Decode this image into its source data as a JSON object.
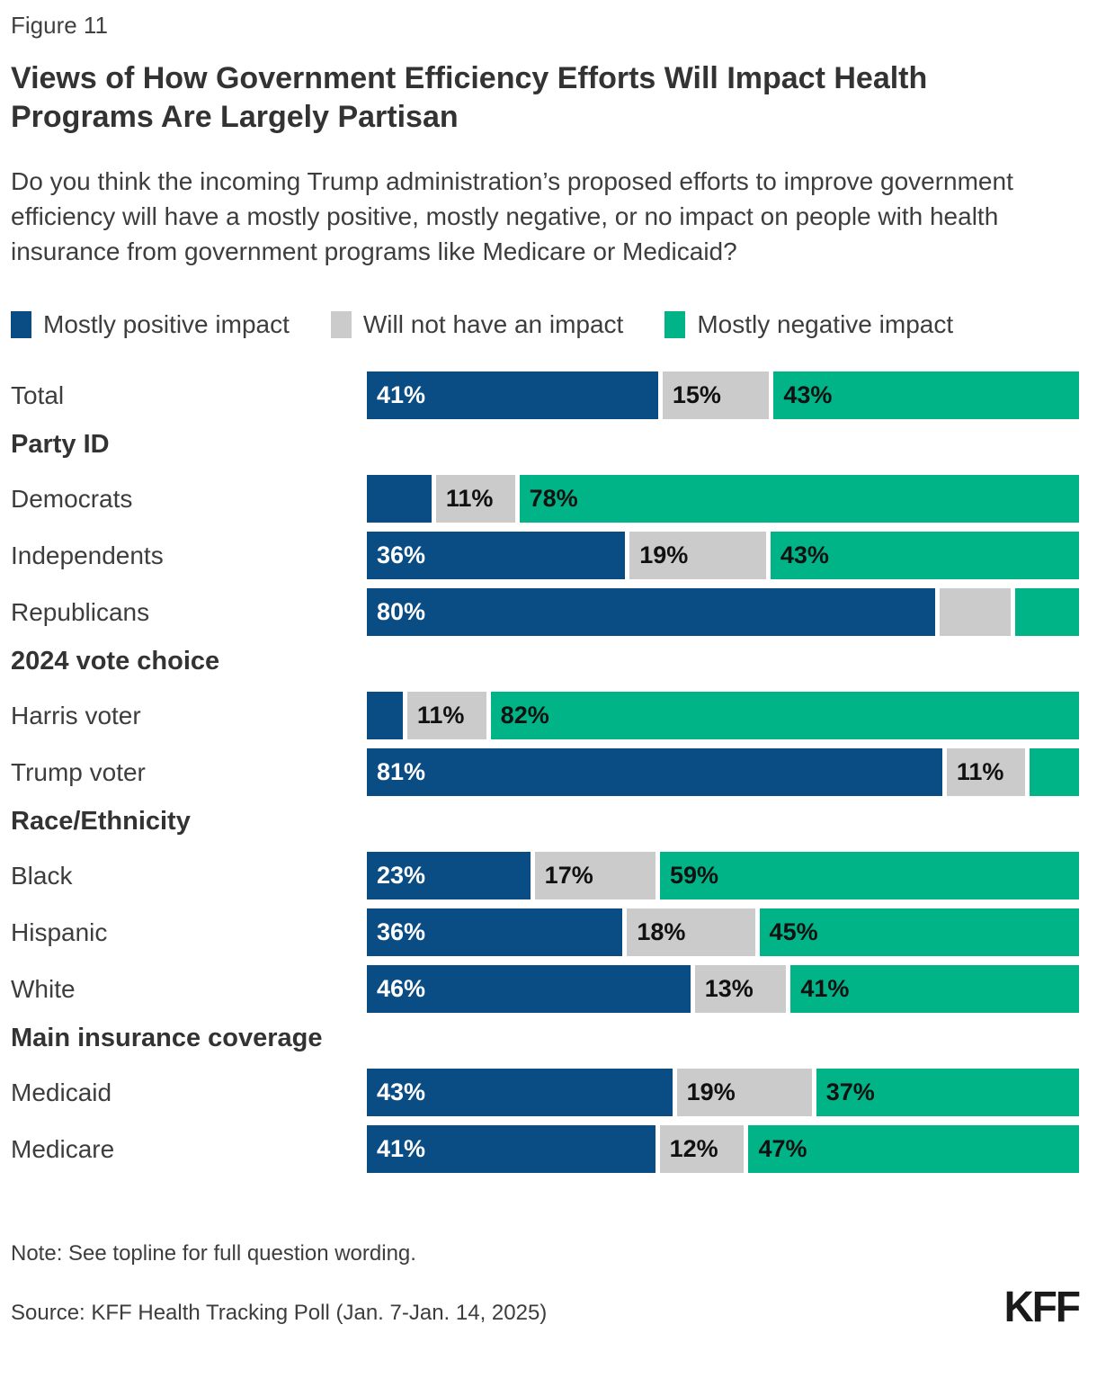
{
  "figure_label": "Figure 11",
  "title": "Views of How Government Efficiency Efforts Will Impact Health Programs Are Largely Partisan",
  "question": "Do you think the incoming Trump administration’s proposed efforts to improve government efficiency will have a mostly positive, mostly negative, or no impact on people with health insurance from government programs like Medicare or Medicaid?",
  "note": "Note: See topline for full question wording.",
  "source": "Source: KFF Health Tracking Poll (Jan. 7-Jan. 14, 2025)",
  "logo_text": "KFF",
  "colors": {
    "positive_blue": "#0a4d85",
    "no_impact_gray": "#cbcbcb",
    "negative_green": "#00b487",
    "text_dark": "#333333",
    "bar_label_on_blue": "#ffffff",
    "bar_label_on_light": "#111111"
  },
  "chart_data": {
    "type": "bar",
    "subtype": "horizontal-stacked",
    "legend_position": "top",
    "xlim": [
      0,
      100
    ],
    "grid": false,
    "series": [
      {
        "name": "Mostly positive impact",
        "color": "#0a4d85"
      },
      {
        "name": "Will not have an impact",
        "color": "#cbcbcb"
      },
      {
        "name": "Mostly negative impact",
        "color": "#00b487"
      }
    ],
    "rows": [
      {
        "type": "bar",
        "label": "Total",
        "values": [
          41,
          15,
          43
        ],
        "value_labels": [
          "41%",
          "15%",
          "43%"
        ]
      },
      {
        "type": "header",
        "label": "Party ID"
      },
      {
        "type": "bar",
        "label": "Democrats",
        "values": [
          9,
          11,
          78
        ],
        "value_labels": [
          "",
          "11%",
          "78%"
        ]
      },
      {
        "type": "bar",
        "label": "Independents",
        "values": [
          36,
          19,
          43
        ],
        "value_labels": [
          "36%",
          "19%",
          "43%"
        ]
      },
      {
        "type": "bar",
        "label": "Republicans",
        "values": [
          80,
          10,
          9
        ],
        "value_labels": [
          "80%",
          "",
          ""
        ]
      },
      {
        "type": "header",
        "label": "2024 vote choice"
      },
      {
        "type": "bar",
        "label": "Harris voter",
        "values": [
          5,
          11,
          82
        ],
        "value_labels": [
          "",
          "11%",
          "82%"
        ]
      },
      {
        "type": "bar",
        "label": "Trump voter",
        "values": [
          81,
          11,
          7
        ],
        "value_labels": [
          "81%",
          "11%",
          ""
        ]
      },
      {
        "type": "header",
        "label": "Race/Ethnicity"
      },
      {
        "type": "bar",
        "label": "Black",
        "values": [
          23,
          17,
          59
        ],
        "value_labels": [
          "23%",
          "17%",
          "59%"
        ]
      },
      {
        "type": "bar",
        "label": "Hispanic",
        "values": [
          36,
          18,
          45
        ],
        "value_labels": [
          "36%",
          "18%",
          "45%"
        ]
      },
      {
        "type": "bar",
        "label": "White",
        "values": [
          46,
          13,
          41
        ],
        "value_labels": [
          "46%",
          "13%",
          "41%"
        ]
      },
      {
        "type": "header",
        "label": "Main insurance coverage"
      },
      {
        "type": "bar",
        "label": "Medicaid",
        "values": [
          43,
          19,
          37
        ],
        "value_labels": [
          "43%",
          "19%",
          "37%"
        ]
      },
      {
        "type": "bar",
        "label": "Medicare",
        "values": [
          41,
          12,
          47
        ],
        "value_labels": [
          "41%",
          "12%",
          "47%"
        ]
      }
    ]
  }
}
